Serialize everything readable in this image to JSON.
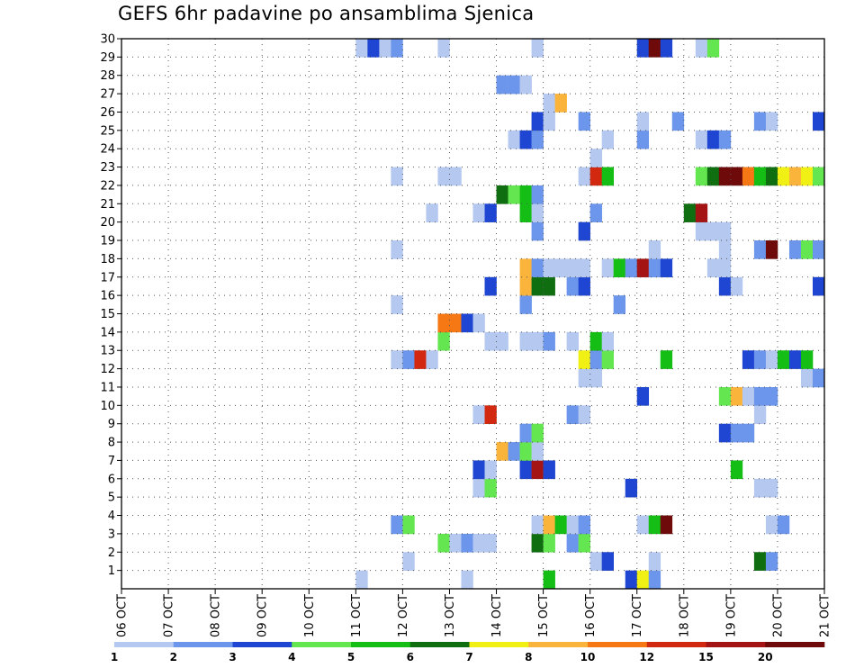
{
  "chart_data": {
    "type": "heatmap",
    "title": "GEFS 6hr padavine po ansamblima Sjenica",
    "xlabel": "",
    "ylabel": "",
    "x_tick_labels": [
      "06 OCT",
      "07 OCT",
      "08 OCT",
      "09 OCT",
      "10 OCT",
      "11 OCT",
      "12 OCT",
      "13 OCT",
      "14 OCT",
      "15 OCT",
      "16 OCT",
      "17 OCT",
      "18 OCT",
      "19 OCT",
      "20 OCT",
      "21 OCT"
    ],
    "x_range": [
      "06 OCT 00Z",
      "21 OCT 00Z"
    ],
    "x_step_hours": 6,
    "y_tick_labels": [
      "1",
      "2",
      "3",
      "4",
      "5",
      "6",
      "7",
      "8",
      "9",
      "10",
      "11",
      "12",
      "13",
      "14",
      "15",
      "16",
      "17",
      "18",
      "19",
      "20",
      "21",
      "22",
      "23",
      "24",
      "25",
      "26",
      "27",
      "28",
      "29",
      "30"
    ],
    "y_range": [
      0,
      30
    ],
    "grid": true,
    "legend_placement": "bottom",
    "legend_labels": [
      "1",
      "2",
      "3",
      "4",
      "5",
      "6",
      "7",
      "8",
      "10",
      "12",
      "15",
      "20"
    ],
    "colors": [
      "#b4c8f0",
      "#6c96eb",
      "#1e46d2",
      "#64e650",
      "#14be14",
      "#0f6e0f",
      "#f0f014",
      "#fab43c",
      "#f57814",
      "#d2280f",
      "#a51414",
      "#6e0a0a"
    ],
    "points": [
      {
        "d": "11 OCT 00Z",
        "m": 0,
        "c": 0
      },
      {
        "d": "13 OCT 06Z",
        "m": 0,
        "c": 0
      },
      {
        "d": "15 OCT 00Z",
        "m": 0,
        "c": 4
      },
      {
        "d": "16 OCT 18Z",
        "m": 0,
        "c": 2
      },
      {
        "d": "17 OCT 00Z",
        "m": 0,
        "c": 6
      },
      {
        "d": "17 OCT 06Z",
        "m": 0,
        "c": 1
      },
      {
        "d": "12 OCT 00Z",
        "m": 1,
        "c": 0
      },
      {
        "d": "16 OCT 00Z",
        "m": 1,
        "c": 0
      },
      {
        "d": "16 OCT 06Z",
        "m": 1,
        "c": 2
      },
      {
        "d": "17 OCT 06Z",
        "m": 1,
        "c": 0
      },
      {
        "d": "19 OCT 12Z",
        "m": 1,
        "c": 5
      },
      {
        "d": "19 OCT 18Z",
        "m": 1,
        "c": 1
      },
      {
        "d": "12 OCT 18Z",
        "m": 2,
        "c": 3
      },
      {
        "d": "13 OCT 00Z",
        "m": 2,
        "c": 0
      },
      {
        "d": "13 OCT 06Z",
        "m": 2,
        "c": 1
      },
      {
        "d": "13 OCT 12Z",
        "m": 2,
        "c": 0
      },
      {
        "d": "13 OCT 18Z",
        "m": 2,
        "c": 0
      },
      {
        "d": "14 OCT 18Z",
        "m": 2,
        "c": 5
      },
      {
        "d": "15 OCT 00Z",
        "m": 2,
        "c": 3
      },
      {
        "d": "15 OCT 12Z",
        "m": 2,
        "c": 1
      },
      {
        "d": "15 OCT 18Z",
        "m": 2,
        "c": 3
      },
      {
        "d": "11 OCT 18Z",
        "m": 3,
        "c": 1
      },
      {
        "d": "12 OCT 00Z",
        "m": 3,
        "c": 3
      },
      {
        "d": "14 OCT 18Z",
        "m": 3,
        "c": 0
      },
      {
        "d": "15 OCT 00Z",
        "m": 3,
        "c": 7
      },
      {
        "d": "15 OCT 06Z",
        "m": 3,
        "c": 4
      },
      {
        "d": "15 OCT 12Z",
        "m": 3,
        "c": 0
      },
      {
        "d": "15 OCT 18Z",
        "m": 3,
        "c": 1
      },
      {
        "d": "17 OCT 00Z",
        "m": 3,
        "c": 0
      },
      {
        "d": "17 OCT 06Z",
        "m": 3,
        "c": 4
      },
      {
        "d": "17 OCT 12Z",
        "m": 3,
        "c": 11
      },
      {
        "d": "19 OCT 18Z",
        "m": 3,
        "c": 0
      },
      {
        "d": "20 OCT 00Z",
        "m": 3,
        "c": 1
      },
      {
        "d": "13 OCT 12Z",
        "m": 5,
        "c": 0
      },
      {
        "d": "13 OCT 18Z",
        "m": 5,
        "c": 3
      },
      {
        "d": "16 OCT 18Z",
        "m": 5,
        "c": 2
      },
      {
        "d": "19 OCT 12Z",
        "m": 5,
        "c": 0
      },
      {
        "d": "19 OCT 18Z",
        "m": 5,
        "c": 0
      },
      {
        "d": "13 OCT 12Z",
        "m": 6,
        "c": 2
      },
      {
        "d": "13 OCT 18Z",
        "m": 6,
        "c": 0
      },
      {
        "d": "14 OCT 12Z",
        "m": 6,
        "c": 2
      },
      {
        "d": "14 OCT 18Z",
        "m": 6,
        "c": 10
      },
      {
        "d": "15 OCT 00Z",
        "m": 6,
        "c": 2
      },
      {
        "d": "19 OCT 00Z",
        "m": 6,
        "c": 4
      },
      {
        "d": "14 OCT 00Z",
        "m": 7,
        "c": 7
      },
      {
        "d": "14 OCT 06Z",
        "m": 7,
        "c": 1
      },
      {
        "d": "14 OCT 12Z",
        "m": 7,
        "c": 3
      },
      {
        "d": "14 OCT 18Z",
        "m": 7,
        "c": 0
      },
      {
        "d": "14 OCT 12Z",
        "m": 8,
        "c": 1
      },
      {
        "d": "14 OCT 18Z",
        "m": 8,
        "c": 3
      },
      {
        "d": "18 OCT 18Z",
        "m": 8,
        "c": 2
      },
      {
        "d": "19 OCT 00Z",
        "m": 8,
        "c": 1
      },
      {
        "d": "19 OCT 06Z",
        "m": 8,
        "c": 1
      },
      {
        "d": "13 OCT 12Z",
        "m": 9,
        "c": 0
      },
      {
        "d": "13 OCT 18Z",
        "m": 9,
        "c": 9
      },
      {
        "d": "15 OCT 12Z",
        "m": 9,
        "c": 1
      },
      {
        "d": "15 OCT 18Z",
        "m": 9,
        "c": 0
      },
      {
        "d": "19 OCT 12Z",
        "m": 9,
        "c": 0
      },
      {
        "d": "17 OCT 00Z",
        "m": 10,
        "c": 2
      },
      {
        "d": "18 OCT 18Z",
        "m": 10,
        "c": 3
      },
      {
        "d": "19 OCT 00Z",
        "m": 10,
        "c": 7
      },
      {
        "d": "19 OCT 06Z",
        "m": 10,
        "c": 0
      },
      {
        "d": "19 OCT 12Z",
        "m": 10,
        "c": 1
      },
      {
        "d": "19 OCT 18Z",
        "m": 10,
        "c": 1
      },
      {
        "d": "15 OCT 18Z",
        "m": 11,
        "c": 0
      },
      {
        "d": "16 OCT 00Z",
        "m": 11,
        "c": 0
      },
      {
        "d": "20 OCT 12Z",
        "m": 11,
        "c": 0
      },
      {
        "d": "20 OCT 18Z",
        "m": 11,
        "c": 1
      },
      {
        "d": "11 OCT 18Z",
        "m": 12,
        "c": 0
      },
      {
        "d": "12 OCT 00Z",
        "m": 12,
        "c": 1
      },
      {
        "d": "12 OCT 06Z",
        "m": 12,
        "c": 9
      },
      {
        "d": "12 OCT 12Z",
        "m": 12,
        "c": 0
      },
      {
        "d": "15 OCT 18Z",
        "m": 12,
        "c": 6
      },
      {
        "d": "16 OCT 00Z",
        "m": 12,
        "c": 1
      },
      {
        "d": "16 OCT 06Z",
        "m": 12,
        "c": 3
      },
      {
        "d": "17 OCT 12Z",
        "m": 12,
        "c": 4
      },
      {
        "d": "19 OCT 06Z",
        "m": 12,
        "c": 2
      },
      {
        "d": "19 OCT 12Z",
        "m": 12,
        "c": 1
      },
      {
        "d": "19 OCT 18Z",
        "m": 12,
        "c": 0
      },
      {
        "d": "20 OCT 00Z",
        "m": 12,
        "c": 4
      },
      {
        "d": "20 OCT 06Z",
        "m": 12,
        "c": 2
      },
      {
        "d": "20 OCT 12Z",
        "m": 12,
        "c": 4
      },
      {
        "d": "12 OCT 18Z",
        "m": 13,
        "c": 3
      },
      {
        "d": "13 OCT 18Z",
        "m": 13,
        "c": 0
      },
      {
        "d": "14 OCT 00Z",
        "m": 13,
        "c": 0
      },
      {
        "d": "14 OCT 12Z",
        "m": 13,
        "c": 0
      },
      {
        "d": "14 OCT 18Z",
        "m": 13,
        "c": 0
      },
      {
        "d": "15 OCT 00Z",
        "m": 13,
        "c": 1
      },
      {
        "d": "15 OCT 12Z",
        "m": 13,
        "c": 0
      },
      {
        "d": "16 OCT 00Z",
        "m": 13,
        "c": 4
      },
      {
        "d": "16 OCT 06Z",
        "m": 13,
        "c": 0
      },
      {
        "d": "12 OCT 18Z",
        "m": 14,
        "c": 8
      },
      {
        "d": "13 OCT 00Z",
        "m": 14,
        "c": 8
      },
      {
        "d": "13 OCT 06Z",
        "m": 14,
        "c": 2
      },
      {
        "d": "13 OCT 12Z",
        "m": 14,
        "c": 0
      },
      {
        "d": "11 OCT 18Z",
        "m": 15,
        "c": 0
      },
      {
        "d": "14 OCT 12Z",
        "m": 15,
        "c": 1
      },
      {
        "d": "16 OCT 12Z",
        "m": 15,
        "c": 1
      },
      {
        "d": "13 OCT 18Z",
        "m": 16,
        "c": 2
      },
      {
        "d": "14 OCT 12Z",
        "m": 16,
        "c": 7
      },
      {
        "d": "14 OCT 18Z",
        "m": 16,
        "c": 5
      },
      {
        "d": "15 OCT 00Z",
        "m": 16,
        "c": 5
      },
      {
        "d": "15 OCT 12Z",
        "m": 16,
        "c": 1
      },
      {
        "d": "15 OCT 18Z",
        "m": 16,
        "c": 2
      },
      {
        "d": "18 OCT 18Z",
        "m": 16,
        "c": 2
      },
      {
        "d": "19 OCT 00Z",
        "m": 16,
        "c": 0
      },
      {
        "d": "20 OCT 18Z",
        "m": 16,
        "c": 2
      },
      {
        "d": "14 OCT 12Z",
        "m": 17,
        "c": 7
      },
      {
        "d": "14 OCT 18Z",
        "m": 17,
        "c": 1
      },
      {
        "d": "15 OCT 00Z",
        "m": 17,
        "c": 0
      },
      {
        "d": "15 OCT 06Z",
        "m": 17,
        "c": 0
      },
      {
        "d": "15 OCT 12Z",
        "m": 17,
        "c": 0
      },
      {
        "d": "15 OCT 18Z",
        "m": 17,
        "c": 0
      },
      {
        "d": "16 OCT 06Z",
        "m": 17,
        "c": 0
      },
      {
        "d": "16 OCT 12Z",
        "m": 17,
        "c": 4
      },
      {
        "d": "16 OCT 18Z",
        "m": 17,
        "c": 1
      },
      {
        "d": "17 OCT 00Z",
        "m": 17,
        "c": 10
      },
      {
        "d": "17 OCT 06Z",
        "m": 17,
        "c": 1
      },
      {
        "d": "17 OCT 12Z",
        "m": 17,
        "c": 2
      },
      {
        "d": "18 OCT 12Z",
        "m": 17,
        "c": 0
      },
      {
        "d": "18 OCT 18Z",
        "m": 17,
        "c": 0
      },
      {
        "d": "11 OCT 18Z",
        "m": 18,
        "c": 0
      },
      {
        "d": "17 OCT 06Z",
        "m": 18,
        "c": 0
      },
      {
        "d": "18 OCT 18Z",
        "m": 18,
        "c": 0
      },
      {
        "d": "19 OCT 12Z",
        "m": 18,
        "c": 1
      },
      {
        "d": "19 OCT 18Z",
        "m": 18,
        "c": 11
      },
      {
        "d": "20 OCT 06Z",
        "m": 18,
        "c": 1
      },
      {
        "d": "20 OCT 12Z",
        "m": 18,
        "c": 3
      },
      {
        "d": "20 OCT 18Z",
        "m": 18,
        "c": 1
      },
      {
        "d": "14 OCT 18Z",
        "m": 19,
        "c": 1
      },
      {
        "d": "15 OCT 18Z",
        "m": 19,
        "c": 2
      },
      {
        "d": "18 OCT 06Z",
        "m": 19,
        "c": 0
      },
      {
        "d": "18 OCT 12Z",
        "m": 19,
        "c": 0
      },
      {
        "d": "18 OCT 18Z",
        "m": 19,
        "c": 0
      },
      {
        "d": "12 OCT 12Z",
        "m": 20,
        "c": 0
      },
      {
        "d": "13 OCT 12Z",
        "m": 20,
        "c": 0
      },
      {
        "d": "13 OCT 18Z",
        "m": 20,
        "c": 2
      },
      {
        "d": "14 OCT 12Z",
        "m": 20,
        "c": 4
      },
      {
        "d": "14 OCT 18Z",
        "m": 20,
        "c": 0
      },
      {
        "d": "16 OCT 00Z",
        "m": 20,
        "c": 1
      },
      {
        "d": "18 OCT 00Z",
        "m": 20,
        "c": 5
      },
      {
        "d": "18 OCT 06Z",
        "m": 20,
        "c": 10
      },
      {
        "d": "14 OCT 00Z",
        "m": 21,
        "c": 5
      },
      {
        "d": "14 OCT 06Z",
        "m": 21,
        "c": 3
      },
      {
        "d": "14 OCT 12Z",
        "m": 21,
        "c": 4
      },
      {
        "d": "14 OCT 18Z",
        "m": 21,
        "c": 1
      },
      {
        "d": "11 OCT 18Z",
        "m": 22,
        "c": 0
      },
      {
        "d": "12 OCT 18Z",
        "m": 22,
        "c": 0
      },
      {
        "d": "13 OCT 00Z",
        "m": 22,
        "c": 0
      },
      {
        "d": "15 OCT 18Z",
        "m": 22,
        "c": 0
      },
      {
        "d": "16 OCT 00Z",
        "m": 22,
        "c": 9
      },
      {
        "d": "16 OCT 06Z",
        "m": 22,
        "c": 4
      },
      {
        "d": "18 OCT 06Z",
        "m": 22,
        "c": 3
      },
      {
        "d": "18 OCT 12Z",
        "m": 22,
        "c": 5
      },
      {
        "d": "18 OCT 18Z",
        "m": 22,
        "c": 11
      },
      {
        "d": "19 OCT 00Z",
        "m": 22,
        "c": 11
      },
      {
        "d": "19 OCT 06Z",
        "m": 22,
        "c": 8
      },
      {
        "d": "19 OCT 12Z",
        "m": 22,
        "c": 4
      },
      {
        "d": "19 OCT 18Z",
        "m": 22,
        "c": 5
      },
      {
        "d": "20 OCT 00Z",
        "m": 22,
        "c": 6
      },
      {
        "d": "20 OCT 06Z",
        "m": 22,
        "c": 7
      },
      {
        "d": "20 OCT 12Z",
        "m": 22,
        "c": 6
      },
      {
        "d": "20 OCT 18Z",
        "m": 22,
        "c": 3
      },
      {
        "d": "16 OCT 00Z",
        "m": 23,
        "c": 0
      },
      {
        "d": "14 OCT 06Z",
        "m": 24,
        "c": 0
      },
      {
        "d": "14 OCT 12Z",
        "m": 24,
        "c": 2
      },
      {
        "d": "14 OCT 18Z",
        "m": 24,
        "c": 1
      },
      {
        "d": "16 OCT 06Z",
        "m": 24,
        "c": 0
      },
      {
        "d": "17 OCT 00Z",
        "m": 24,
        "c": 1
      },
      {
        "d": "18 OCT 06Z",
        "m": 24,
        "c": 0
      },
      {
        "d": "18 OCT 12Z",
        "m": 24,
        "c": 2
      },
      {
        "d": "18 OCT 18Z",
        "m": 24,
        "c": 1
      },
      {
        "d": "14 OCT 18Z",
        "m": 25,
        "c": 2
      },
      {
        "d": "15 OCT 00Z",
        "m": 25,
        "c": 0
      },
      {
        "d": "15 OCT 18Z",
        "m": 25,
        "c": 1
      },
      {
        "d": "17 OCT 00Z",
        "m": 25,
        "c": 0
      },
      {
        "d": "17 OCT 18Z",
        "m": 25,
        "c": 1
      },
      {
        "d": "19 OCT 12Z",
        "m": 25,
        "c": 1
      },
      {
        "d": "19 OCT 18Z",
        "m": 25,
        "c": 0
      },
      {
        "d": "20 OCT 18Z",
        "m": 25,
        "c": 2
      },
      {
        "d": "15 OCT 00Z",
        "m": 26,
        "c": 0
      },
      {
        "d": "15 OCT 06Z",
        "m": 26,
        "c": 7
      },
      {
        "d": "14 OCT 00Z",
        "m": 27,
        "c": 1
      },
      {
        "d": "14 OCT 06Z",
        "m": 27,
        "c": 1
      },
      {
        "d": "14 OCT 12Z",
        "m": 27,
        "c": 0
      },
      {
        "d": "11 OCT 00Z",
        "m": 29,
        "c": 0
      },
      {
        "d": "11 OCT 06Z",
        "m": 29,
        "c": 2
      },
      {
        "d": "11 OCT 12Z",
        "m": 29,
        "c": 0
      },
      {
        "d": "11 OCT 18Z",
        "m": 29,
        "c": 1
      },
      {
        "d": "12 OCT 18Z",
        "m": 29,
        "c": 0
      },
      {
        "d": "14 OCT 18Z",
        "m": 29,
        "c": 0
      },
      {
        "d": "17 OCT 00Z",
        "m": 29,
        "c": 2
      },
      {
        "d": "17 OCT 06Z",
        "m": 29,
        "c": 11
      },
      {
        "d": "17 OCT 12Z",
        "m": 29,
        "c": 2
      },
      {
        "d": "18 OCT 06Z",
        "m": 29,
        "c": 0
      },
      {
        "d": "18 OCT 12Z",
        "m": 29,
        "c": 3
      }
    ]
  }
}
